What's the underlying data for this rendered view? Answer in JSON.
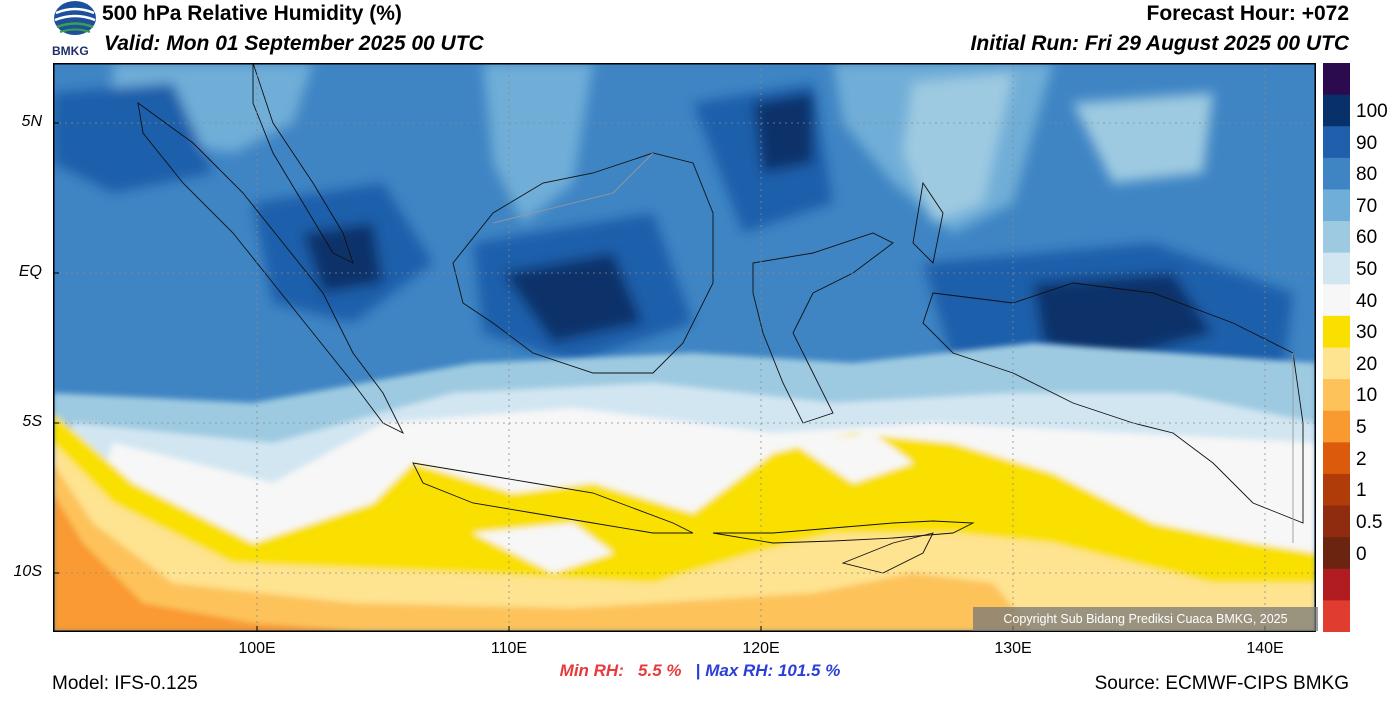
{
  "header": {
    "title": "500 hPa Relative Humidity (%)",
    "valid": "Valid: Mon 01 September 2025 00 UTC",
    "forecast_hour": "Forecast Hour: +072",
    "initial_run": "Initial Run: Fri 29 August 2025 00 UTC",
    "logo_text": "BMKG"
  },
  "map": {
    "lat_labels": [
      "5N",
      "EQ",
      "5S",
      "10S"
    ],
    "lon_labels": [
      "100E",
      "110E",
      "120E",
      "130E",
      "140E"
    ],
    "copyright": "Copyright Sub Bidang Prediksi Cuaca BMKG, 2025"
  },
  "stats": {
    "min_label": "Min RH:",
    "min_value": "5.5 %",
    "separator": "|",
    "max_label": "Max RH:",
    "max_value": "101.5 %"
  },
  "footer": {
    "model": "Model: IFS-0.125",
    "source": "Source: ECMWF-CIPS BMKG"
  },
  "colorbar": {
    "labels": [
      "100",
      "90",
      "80",
      "70",
      "60",
      "50",
      "40",
      "30",
      "20",
      "10",
      "5",
      "2",
      "1",
      "0.5",
      "0"
    ],
    "colors": [
      "#2c0a4e",
      "#08306b",
      "#1f5fab",
      "#3f85c4",
      "#6faed8",
      "#9ecae1",
      "#d2e6f2",
      "#f7f7f7",
      "#f9e000",
      "#fee390",
      "#fdc35a",
      "#f99a30",
      "#db5a0c",
      "#b03d09",
      "#8f2b0e",
      "#6a2410",
      "#b01c20",
      "#e03c30"
    ]
  }
}
